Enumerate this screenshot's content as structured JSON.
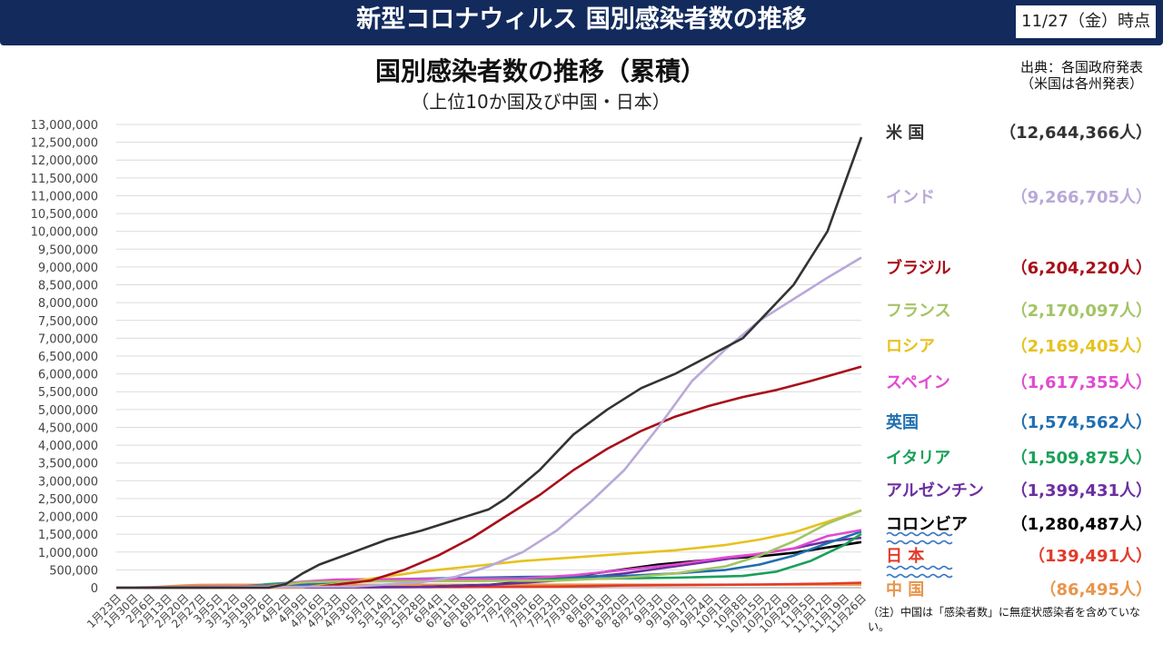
{
  "header": {
    "title": "新型コロナウィルス 国別感染者数の推移",
    "date": "11/27（金）時点"
  },
  "chart_title": "国別感染者数の推移（累積）",
  "chart_subtitle": "（上位10か国及び中国・日本）",
  "source": {
    "line1": "出典：各国政府発表",
    "line2": "（米国は各州発表）"
  },
  "note": "（注）中国は「感染者数」に無症状感染者を含めていない。",
  "chart_data": {
    "type": "line",
    "title": "国別感染者数の推移（累積）",
    "subtitle": "（上位10か国及び中国・日本）",
    "ylim": [
      0,
      13000000
    ],
    "y_ticks": [
      "0",
      "500,000",
      "1,000,000",
      "1,500,000",
      "2,000,000",
      "2,500,000",
      "3,000,000",
      "3,500,000",
      "4,000,000",
      "4,500,000",
      "5,000,000",
      "5,500,000",
      "6,000,000",
      "6,500,000",
      "7,000,000",
      "7,500,000",
      "8,000,000",
      "8,500,000",
      "9,000,000",
      "9,500,000",
      "10,000,000",
      "10,500,000",
      "11,000,000",
      "11,500,000",
      "12,000,000",
      "12,500,000",
      "13,000,000"
    ],
    "x_ticks": [
      "1月23日",
      "1月30日",
      "2月6日",
      "2月13日",
      "2月20日",
      "2月27日",
      "3月5日",
      "3月12日",
      "3月19日",
      "3月26日",
      "4月2日",
      "4月9日",
      "4月16日",
      "4月23日",
      "4月30日",
      "5月7日",
      "5月14日",
      "5月21日",
      "5月28日",
      "6月4日",
      "6月11日",
      "6月18日",
      "6月25日",
      "7月2日",
      "7月9日",
      "7月16日",
      "7月23日",
      "7月30日",
      "8月6日",
      "8月13日",
      "8月20日",
      "8月27日",
      "9月3日",
      "9月10日",
      "9月17日",
      "9月24日",
      "10月1日",
      "10月8日",
      "10月15日",
      "10月22日",
      "10月29日",
      "11月5日",
      "11月12日",
      "11月19日",
      "11月26日"
    ],
    "grid": true,
    "legend_position": "right",
    "series": [
      {
        "name": "米 国",
        "value_label": "（12,644,366人）",
        "color": "#333333",
        "points": [
          [
            0,
            0
          ],
          [
            9,
            1000
          ],
          [
            10,
            100000
          ],
          [
            11,
            400000
          ],
          [
            12,
            650000
          ],
          [
            14,
            1000000
          ],
          [
            16,
            1350000
          ],
          [
            18,
            1600000
          ],
          [
            20,
            1900000
          ],
          [
            22,
            2200000
          ],
          [
            23,
            2500000
          ],
          [
            25,
            3300000
          ],
          [
            27,
            4300000
          ],
          [
            29,
            5000000
          ],
          [
            31,
            5600000
          ],
          [
            33,
            6000000
          ],
          [
            35,
            6500000
          ],
          [
            37,
            7000000
          ],
          [
            38,
            7500000
          ],
          [
            40,
            8500000
          ],
          [
            42,
            10000000
          ],
          [
            44,
            12644366
          ]
        ]
      },
      {
        "name": "インド",
        "value_label": "（9,266,705人）",
        "color": "#b9a8d8",
        "points": [
          [
            0,
            0
          ],
          [
            14,
            30000
          ],
          [
            18,
            150000
          ],
          [
            20,
            300000
          ],
          [
            22,
            600000
          ],
          [
            24,
            1000000
          ],
          [
            26,
            1600000
          ],
          [
            28,
            2400000
          ],
          [
            30,
            3300000
          ],
          [
            32,
            4500000
          ],
          [
            34,
            5800000
          ],
          [
            36,
            6700000
          ],
          [
            38,
            7500000
          ],
          [
            40,
            8100000
          ],
          [
            42,
            8700000
          ],
          [
            44,
            9266705
          ]
        ]
      },
      {
        "name": "ブラジル",
        "value_label": "（6,204,220人）",
        "color": "#a80f1a",
        "points": [
          [
            0,
            0
          ],
          [
            12,
            30000
          ],
          [
            15,
            200000
          ],
          [
            17,
            500000
          ],
          [
            19,
            900000
          ],
          [
            21,
            1400000
          ],
          [
            23,
            2000000
          ],
          [
            25,
            2600000
          ],
          [
            27,
            3300000
          ],
          [
            29,
            3900000
          ],
          [
            31,
            4400000
          ],
          [
            33,
            4800000
          ],
          [
            35,
            5100000
          ],
          [
            37,
            5350000
          ],
          [
            39,
            5550000
          ],
          [
            41,
            5800000
          ],
          [
            44,
            6204220
          ]
        ]
      },
      {
        "name": "フランス",
        "value_label": "（2,170,097人）",
        "color": "#a3c464",
        "points": [
          [
            0,
            0
          ],
          [
            9,
            30000
          ],
          [
            11,
            150000
          ],
          [
            13,
            170000
          ],
          [
            26,
            200000
          ],
          [
            30,
            280000
          ],
          [
            33,
            400000
          ],
          [
            36,
            600000
          ],
          [
            38,
            900000
          ],
          [
            40,
            1300000
          ],
          [
            42,
            1800000
          ],
          [
            44,
            2170097
          ]
        ]
      },
      {
        "name": "ロシア",
        "value_label": "（2,169,405人）",
        "color": "#e6c21e",
        "points": [
          [
            0,
            0
          ],
          [
            11,
            10000
          ],
          [
            13,
            100000
          ],
          [
            15,
            250000
          ],
          [
            18,
            450000
          ],
          [
            21,
            600000
          ],
          [
            24,
            750000
          ],
          [
            27,
            850000
          ],
          [
            30,
            950000
          ],
          [
            33,
            1050000
          ],
          [
            36,
            1200000
          ],
          [
            38,
            1350000
          ],
          [
            40,
            1550000
          ],
          [
            42,
            1850000
          ],
          [
            44,
            2169405
          ]
        ]
      },
      {
        "name": "スペイン",
        "value_label": "（1,617,355人）",
        "color": "#e04ad1",
        "points": [
          [
            0,
            0
          ],
          [
            9,
            50000
          ],
          [
            11,
            170000
          ],
          [
            13,
            230000
          ],
          [
            24,
            260000
          ],
          [
            27,
            350000
          ],
          [
            30,
            500000
          ],
          [
            33,
            650000
          ],
          [
            36,
            850000
          ],
          [
            38,
            950000
          ],
          [
            40,
            1100000
          ],
          [
            42,
            1450000
          ],
          [
            44,
            1617355
          ]
        ]
      },
      {
        "name": "英国",
        "value_label": "（1,574,562人）",
        "color": "#1f6eb0",
        "points": [
          [
            0,
            0
          ],
          [
            10,
            30000
          ],
          [
            12,
            130000
          ],
          [
            15,
            230000
          ],
          [
            24,
            300000
          ],
          [
            30,
            330000
          ],
          [
            33,
            400000
          ],
          [
            36,
            500000
          ],
          [
            38,
            650000
          ],
          [
            40,
            900000
          ],
          [
            42,
            1250000
          ],
          [
            44,
            1574562
          ]
        ]
      },
      {
        "name": "イタリア",
        "value_label": "（1,509,875人）",
        "color": "#1aa05a",
        "points": [
          [
            0,
            0
          ],
          [
            7,
            10000
          ],
          [
            9,
            100000
          ],
          [
            12,
            190000
          ],
          [
            15,
            230000
          ],
          [
            28,
            250000
          ],
          [
            33,
            280000
          ],
          [
            37,
            330000
          ],
          [
            39,
            450000
          ],
          [
            41,
            750000
          ],
          [
            43,
            1200000
          ],
          [
            44,
            1509875
          ]
        ]
      },
      {
        "name": "アルゼンチン",
        "value_label": "（1,399,431人）",
        "color": "#6b2fa0",
        "points": [
          [
            0,
            0
          ],
          [
            18,
            20000
          ],
          [
            22,
            80000
          ],
          [
            26,
            200000
          ],
          [
            30,
            400000
          ],
          [
            33,
            600000
          ],
          [
            36,
            800000
          ],
          [
            38,
            950000
          ],
          [
            40,
            1100000
          ],
          [
            42,
            1300000
          ],
          [
            44,
            1399431
          ]
        ]
      },
      {
        "name": "コロンビア",
        "value_label": "（1,280,487人）",
        "color": "#000000",
        "points": [
          [
            0,
            0
          ],
          [
            18,
            20000
          ],
          [
            22,
            80000
          ],
          [
            26,
            250000
          ],
          [
            29,
            450000
          ],
          [
            32,
            650000
          ],
          [
            35,
            780000
          ],
          [
            38,
            880000
          ],
          [
            40,
            980000
          ],
          [
            42,
            1130000
          ],
          [
            44,
            1280487
          ]
        ]
      },
      {
        "name": "日 本",
        "value_label": "（139,491人）",
        "color": "#e23a2a",
        "points": [
          [
            0,
            0
          ],
          [
            10,
            3000
          ],
          [
            14,
            14000
          ],
          [
            20,
            17000
          ],
          [
            26,
            30000
          ],
          [
            30,
            60000
          ],
          [
            34,
            75000
          ],
          [
            38,
            90000
          ],
          [
            42,
            115000
          ],
          [
            44,
            139491
          ]
        ]
      },
      {
        "name": "中 国",
        "value_label": "（86,495人）",
        "color": "#e8954a",
        "points": [
          [
            0,
            400
          ],
          [
            2,
            12000
          ],
          [
            4,
            60000
          ],
          [
            5,
            78000
          ],
          [
            7,
            80500
          ],
          [
            12,
            82000
          ],
          [
            26,
            84000
          ],
          [
            44,
            86495
          ]
        ]
      }
    ]
  }
}
